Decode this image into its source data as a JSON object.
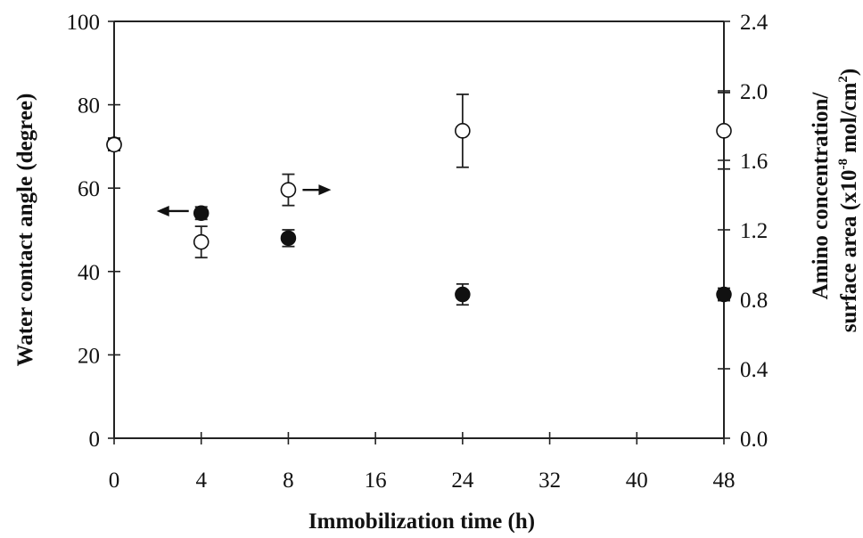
{
  "chart_data": {
    "type": "scatter",
    "xlabel": "Immobilization time (h)",
    "ylabel_left": "Water contact angle (degree)",
    "ylabel_right_line1": "Amino concentration/",
    "ylabel_right_line2": "surface  area (x10",
    "ylabel_right_exp": "-8",
    "ylabel_right_mid": "  mol/cm",
    "ylabel_right_exp2": "2",
    "ylabel_right_tail": ")",
    "x_tick_labels": [
      "0",
      "4",
      "8",
      "16",
      "24",
      "32",
      "40",
      "48"
    ],
    "ylim_left": [
      0,
      100
    ],
    "y_ticks_left": [
      0,
      20,
      40,
      60,
      80,
      100
    ],
    "y_tick_labels_left": [
      "0",
      "20",
      "40",
      "60",
      "80",
      "100"
    ],
    "ylim_right": [
      0.0,
      2.4
    ],
    "y_ticks_right": [
      0.0,
      0.4,
      0.8,
      1.2,
      1.6,
      2.0,
      2.4
    ],
    "y_tick_labels_right": [
      "0.0",
      "0.4",
      "0.8",
      "1.2",
      "1.6",
      "2.0",
      "2.4"
    ],
    "grid": false,
    "series": [
      {
        "axis": "left",
        "marker": "filled-circle",
        "points": [
          {
            "x": "0",
            "y": 70.5,
            "err": 1.5
          },
          {
            "x": "4",
            "y": 54,
            "err": 1.5
          },
          {
            "x": "8",
            "y": 48,
            "err": 2
          },
          {
            "x": "24",
            "y": 34.5,
            "err": 2.5
          },
          {
            "x": "48",
            "y": 34.5,
            "err": 1.5
          }
        ]
      },
      {
        "axis": "right",
        "marker": "open-circle",
        "points": [
          {
            "x": "0",
            "y": 1.69,
            "err": 0.03
          },
          {
            "x": "4",
            "y": 1.13,
            "err": 0.09
          },
          {
            "x": "8",
            "y": 1.43,
            "err": 0.09
          },
          {
            "x": "24",
            "y": 1.77,
            "err": 0.21
          },
          {
            "x": "48",
            "y": 1.77,
            "err": 0.22
          }
        ]
      }
    ],
    "arrows": [
      {
        "near": "4",
        "points_to": "left"
      },
      {
        "near": "8",
        "points_to": "right"
      }
    ]
  }
}
